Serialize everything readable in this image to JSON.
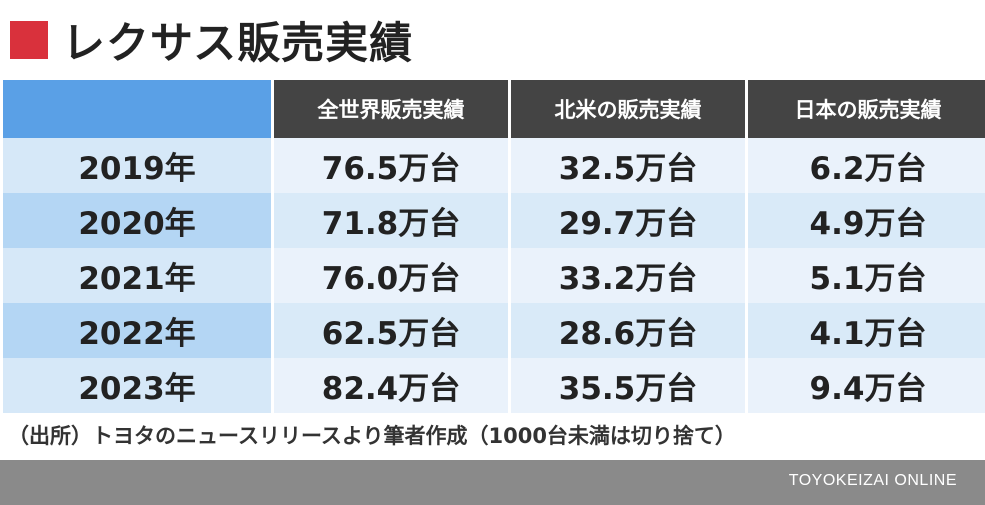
{
  "title": "レクサス販売実績",
  "colors": {
    "accent_square": "#d9313c",
    "header_dark": "#444444",
    "header_corner": "#5aa0e6",
    "year_cell": "#d6e8f8",
    "year_cell_alt": "#b4d6f4",
    "value_cell": "#eaf2fb",
    "value_cell_alt": "#d9eaf8",
    "footer_bar": "#8a8a8a"
  },
  "chart_data": {
    "type": "table",
    "title": "レクサス販売実績",
    "columns": [
      "",
      "全世界販売実績",
      "北米の販売実績",
      "日本の販売実績"
    ],
    "rows": [
      {
        "year": "2019年",
        "cells": [
          "76.5万台",
          "32.5万台",
          "6.2万台"
        ]
      },
      {
        "year": "2020年",
        "cells": [
          "71.8万台",
          "29.7万台",
          "4.9万台"
        ]
      },
      {
        "year": "2021年",
        "cells": [
          "76.0万台",
          "33.2万台",
          "5.1万台"
        ]
      },
      {
        "year": "2022年",
        "cells": [
          "62.5万台",
          "28.6万台",
          "4.1万台"
        ]
      },
      {
        "year": "2023年",
        "cells": [
          "82.4万台",
          "35.5万台",
          "9.4万台"
        ]
      }
    ],
    "series": [
      {
        "name": "全世界販売実績",
        "values": [
          76.5,
          71.8,
          76.0,
          62.5,
          82.4
        ]
      },
      {
        "name": "北米の販売実績",
        "values": [
          32.5,
          29.7,
          33.2,
          28.6,
          35.5
        ]
      },
      {
        "name": "日本の販売実績",
        "values": [
          6.2,
          4.9,
          5.1,
          4.1,
          9.4
        ]
      }
    ]
  },
  "source_note": "（出所）トヨタのニュースリリースより筆者作成（1000台未満は切り捨て）",
  "brand": "TOYOKEIZAI ONLINE"
}
